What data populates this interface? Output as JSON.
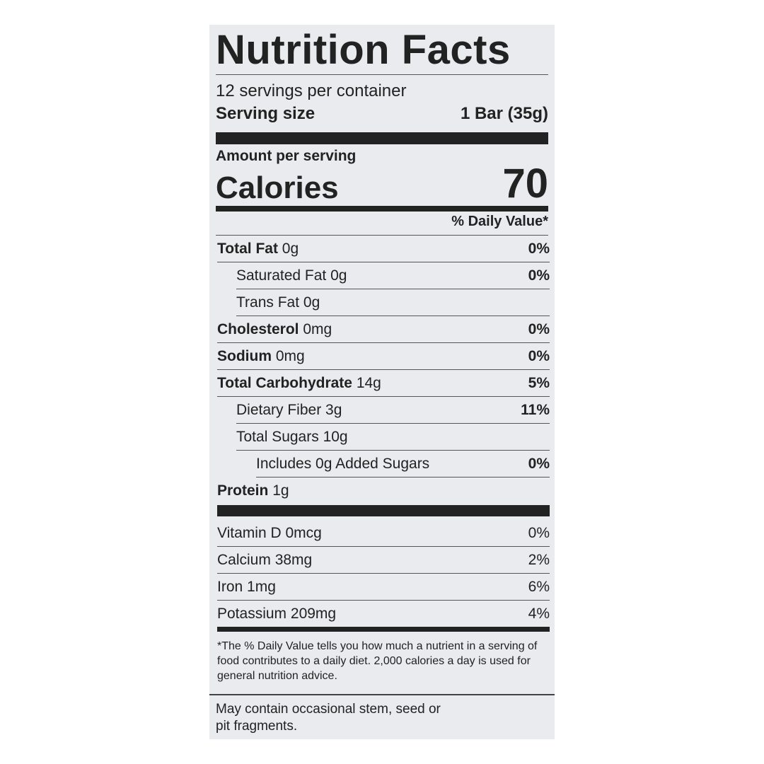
{
  "title": "Nutrition Facts",
  "servings": "12 servings per container",
  "serving_size": {
    "label": "Serving size",
    "value": "1 Bar (35g)"
  },
  "amount_per_serving": "Amount per serving",
  "calories": {
    "label": "Calories",
    "value": "70"
  },
  "dv_header": "% Daily Value*",
  "nutrients": [
    {
      "name": "Total Fat",
      "amount": "0g",
      "dv": "0%"
    },
    {
      "name": "Saturated Fat",
      "amount": "0g",
      "dv": "0%"
    },
    {
      "name": "Trans Fat",
      "amount": "0g"
    },
    {
      "name": "Cholesterol",
      "amount": "0mg",
      "dv": "0%"
    },
    {
      "name": "Sodium",
      "amount": "0mg",
      "dv": "0%"
    },
    {
      "name": "Total Carbohydrate",
      "amount": "14g",
      "dv": "5%"
    },
    {
      "name": "Dietary Fiber",
      "amount": "3g",
      "dv": "11%"
    },
    {
      "name": "Total Sugars",
      "amount": "10g"
    },
    {
      "name": "Includes 0g Added Sugars",
      "dv": "0%"
    },
    {
      "name": "Protein",
      "amount": "1g"
    }
  ],
  "vitamins": [
    {
      "name": "Vitamin D",
      "amount": "0mcg",
      "dv": "0%"
    },
    {
      "name": "Calcium",
      "amount": "38mg",
      "dv": "2%"
    },
    {
      "name": "Iron",
      "amount": "1mg",
      "dv": "6%"
    },
    {
      "name": "Potassium",
      "amount": "209mg",
      "dv": "4%"
    }
  ],
  "footnote": "*The % Daily Value tells you how much a nutrient in a serving of food contributes to a daily diet. 2,000 calories a day is used for general nutrition advice.",
  "note": "May contain occasional stem, seed or pit fragments."
}
